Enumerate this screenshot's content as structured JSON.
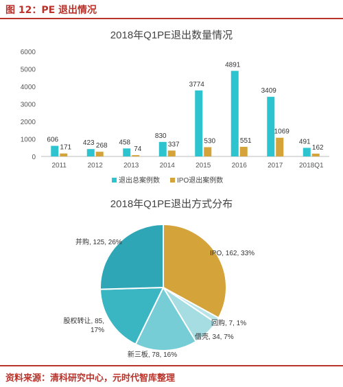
{
  "header": {
    "figure_title": "图 12：PE 退出情况"
  },
  "footer": {
    "source": "资料来源：清科研究中心，元时代智库整理"
  },
  "colors": {
    "accent": "#b8322a",
    "series1": "#2ec4cf",
    "series2": "#d4a33a",
    "pie": [
      "#d4a33a",
      "#b9e4e8",
      "#a6dde2",
      "#77cdd6",
      "#3ab5c2",
      "#2ea6b5"
    ]
  },
  "chart_data": [
    {
      "type": "bar",
      "title": "2018年Q1PE退出数量情况",
      "categories": [
        "2011",
        "2012",
        "2013",
        "2014",
        "2015",
        "2016",
        "2017",
        "2018Q1"
      ],
      "series": [
        {
          "name": "退出总案例数",
          "values": [
            606,
            423,
            458,
            830,
            3774,
            4891,
            3409,
            491
          ]
        },
        {
          "name": "IPO退出案例数",
          "values": [
            171,
            268,
            74,
            337,
            530,
            551,
            1069,
            162
          ]
        }
      ],
      "yticks": [
        "0",
        "1000",
        "2000",
        "3000",
        "4000",
        "5000",
        "6000"
      ],
      "ylim": [
        0,
        6000
      ],
      "legend": "bottom",
      "grid": false
    },
    {
      "type": "pie",
      "title": "2018年Q1PE退出方式分布",
      "slices": [
        {
          "label": "IPO, 162, 33%",
          "value": 162
        },
        {
          "label": "回购, 7, 1%",
          "value": 7
        },
        {
          "label": "借壳, 34, 7%",
          "value": 34
        },
        {
          "label": "新三板, 78, 16%",
          "value": 78
        },
        {
          "label": "股权转让, 85,\n17%",
          "value": 85
        },
        {
          "label": "并购, 125, 26%",
          "value": 125
        }
      ]
    }
  ]
}
